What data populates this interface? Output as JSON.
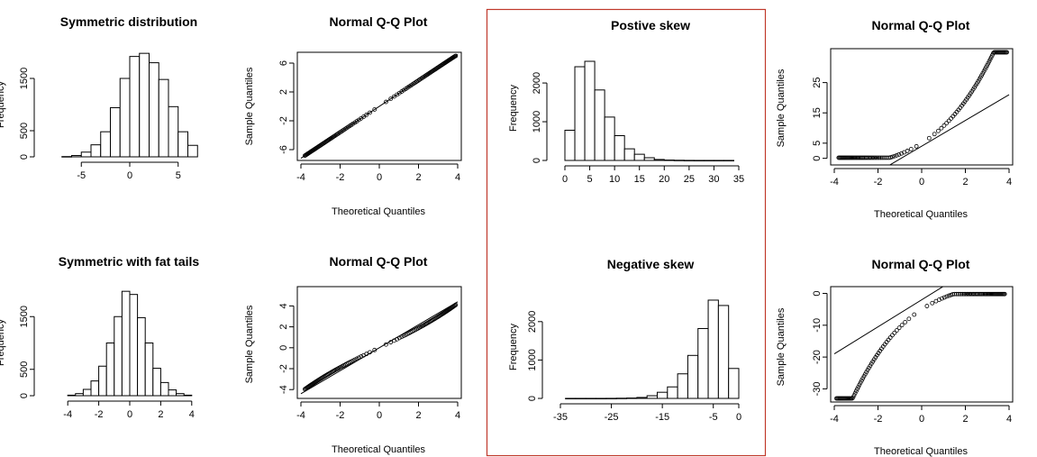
{
  "highlight_color": "#c0392b",
  "chart_data": [
    {
      "type": "bar",
      "title": "Symmetric distribution",
      "ylabel": "Frequency",
      "xticks": [
        "-5",
        "0",
        "5"
      ],
      "yticks": [
        "0",
        "500",
        "1500"
      ],
      "xlim": [
        -8,
        8
      ],
      "ylim": [
        0,
        2000
      ],
      "bins": [
        [
          -7,
          -6
        ],
        [
          -6,
          -5
        ],
        [
          -5,
          -4
        ],
        [
          -4,
          -3
        ],
        [
          -3,
          -2
        ],
        [
          -2,
          -1
        ],
        [
          -1,
          0
        ],
        [
          0,
          1
        ],
        [
          1,
          2
        ],
        [
          2,
          3
        ],
        [
          3,
          4
        ],
        [
          4,
          5
        ],
        [
          5,
          6
        ],
        [
          6,
          7
        ]
      ],
      "values": [
        5,
        25,
        90,
        230,
        480,
        940,
        1500,
        1920,
        1980,
        1800,
        1480,
        960,
        480,
        220
      ]
    },
    {
      "type": "scatter",
      "title": "Normal Q-Q Plot",
      "xlabel": "Theoretical Quantiles",
      "ylabel": "Sample Quantiles",
      "xticks": [
        "-4",
        "-2",
        "0",
        "2",
        "4"
      ],
      "yticks": [
        "-6",
        "-2",
        "2",
        "6"
      ],
      "xlim": [
        -4,
        4
      ],
      "ylim": [
        -7,
        7
      ],
      "curve": "linear",
      "x_range": [
        -3.8,
        3.9
      ],
      "reference_line": [
        [
          -4,
          -7.2
        ],
        [
          4,
          7.2
        ]
      ]
    },
    {
      "type": "bar",
      "title": "Postive skew",
      "ylabel": "Frequency",
      "xticks": [
        "0",
        "5",
        "10",
        "15",
        "20",
        "25",
        "30",
        "35"
      ],
      "yticks": [
        "0",
        "1000",
        "2000"
      ],
      "xlim": [
        0,
        35
      ],
      "ylim": [
        0,
        2700
      ],
      "bins": [
        [
          0,
          2
        ],
        [
          2,
          4
        ],
        [
          4,
          6
        ],
        [
          6,
          8
        ],
        [
          8,
          10
        ],
        [
          10,
          12
        ],
        [
          12,
          14
        ],
        [
          14,
          16
        ],
        [
          16,
          18
        ],
        [
          18,
          20
        ],
        [
          20,
          22
        ],
        [
          22,
          24
        ],
        [
          24,
          26
        ],
        [
          26,
          28
        ],
        [
          28,
          30
        ],
        [
          30,
          32
        ],
        [
          32,
          34
        ]
      ],
      "values": [
        780,
        2420,
        2560,
        1820,
        1120,
        640,
        300,
        160,
        70,
        25,
        10,
        5,
        2,
        1,
        1,
        1,
        1
      ]
    },
    {
      "type": "scatter",
      "title": "Normal Q-Q Plot",
      "xlabel": "Theoretical Quantiles",
      "ylabel": "Sample Quantiles",
      "xticks": [
        "-4",
        "-2",
        "0",
        "2",
        "4"
      ],
      "yticks": [
        "0",
        "5",
        "15",
        "25"
      ],
      "xlim": [
        -4,
        4
      ],
      "ylim": [
        -1,
        35
      ],
      "curve": "positive-skew",
      "x_range": [
        -3.8,
        3.9
      ],
      "reference_line": [
        [
          -4,
          -13
        ],
        [
          4,
          21
        ]
      ]
    },
    {
      "type": "bar",
      "title": "Symmetric with fat tails",
      "ylabel": "Frequency",
      "xticks": [
        "-4",
        "-2",
        "0",
        "2",
        "4"
      ],
      "yticks": [
        "0",
        "500",
        "1500"
      ],
      "xlim": [
        -5,
        5
      ],
      "ylim": [
        0,
        2000
      ],
      "bins": [
        [
          -4,
          -3.5
        ],
        [
          -3.5,
          -3
        ],
        [
          -3,
          -2.5
        ],
        [
          -2.5,
          -2
        ],
        [
          -2,
          -1.5
        ],
        [
          -1.5,
          -1
        ],
        [
          -1,
          -0.5
        ],
        [
          -0.5,
          0
        ],
        [
          0,
          0.5
        ],
        [
          0.5,
          1
        ],
        [
          1,
          1.5
        ],
        [
          1.5,
          2
        ],
        [
          2,
          2.5
        ],
        [
          2.5,
          3
        ],
        [
          3,
          3.5
        ],
        [
          3.5,
          4
        ]
      ],
      "values": [
        10,
        40,
        120,
        280,
        560,
        1000,
        1500,
        1980,
        1920,
        1480,
        1000,
        520,
        250,
        110,
        40,
        10
      ]
    },
    {
      "type": "scatter",
      "title": "Normal Q-Q Plot",
      "xlabel": "Theoretical Quantiles",
      "ylabel": "Sample Quantiles",
      "xticks": [
        "-4",
        "-2",
        "0",
        "2",
        "4"
      ],
      "yticks": [
        "-4",
        "-2",
        "0",
        "2",
        "4"
      ],
      "xlim": [
        -4,
        4
      ],
      "ylim": [
        -4.5,
        5.5
      ],
      "curve": "fat-tails",
      "x_range": [
        -3.8,
        3.9
      ],
      "reference_line": [
        [
          -4,
          -4.4
        ],
        [
          4,
          4.4
        ]
      ]
    },
    {
      "type": "bar",
      "title": "Negative skew",
      "ylabel": "Frequency",
      "xticks": [
        "-35",
        "-25",
        "-15",
        "-5",
        "0"
      ],
      "yticks": [
        "0",
        "1000",
        "2000"
      ],
      "xlim": [
        -35,
        0
      ],
      "ylim": [
        0,
        2700
      ],
      "bins": [
        [
          -34,
          -32
        ],
        [
          -32,
          -30
        ],
        [
          -30,
          -28
        ],
        [
          -28,
          -26
        ],
        [
          -26,
          -24
        ],
        [
          -24,
          -22
        ],
        [
          -22,
          -20
        ],
        [
          -20,
          -18
        ],
        [
          -18,
          -16
        ],
        [
          -16,
          -14
        ],
        [
          -14,
          -12
        ],
        [
          -12,
          -10
        ],
        [
          -10,
          -8
        ],
        [
          -8,
          -6
        ],
        [
          -6,
          -4
        ],
        [
          -4,
          -2
        ],
        [
          -2,
          0
        ]
      ],
      "values": [
        1,
        1,
        1,
        1,
        2,
        5,
        10,
        25,
        70,
        160,
        300,
        640,
        1120,
        1820,
        2560,
        2420,
        780
      ]
    },
    {
      "type": "scatter",
      "title": "Normal Q-Q Plot",
      "xlabel": "Theoretical Quantiles",
      "ylabel": "Sample Quantiles",
      "xticks": [
        "-4",
        "-2",
        "0",
        "2",
        "4"
      ],
      "yticks": [
        "-30",
        "-20",
        "-10",
        "0"
      ],
      "xlim": [
        -4,
        4
      ],
      "ylim": [
        -33,
        1
      ],
      "curve": "negative-skew",
      "x_range": [
        -3.9,
        3.8
      ],
      "reference_line": [
        [
          -4,
          -19
        ],
        [
          4,
          15
        ]
      ]
    }
  ]
}
